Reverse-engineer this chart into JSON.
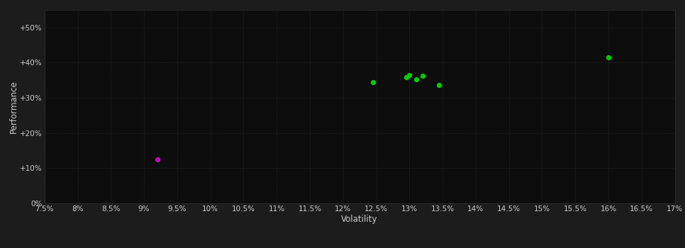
{
  "background_color": "#1c1c1c",
  "plot_bg_color": "#0d0d0d",
  "grid_color": "#2e2e2e",
  "text_color": "#cccccc",
  "xlabel": "Volatility",
  "ylabel": "Performance",
  "xlim": [
    0.075,
    0.17
  ],
  "ylim": [
    0.0,
    0.55
  ],
  "xticks": [
    0.075,
    0.08,
    0.085,
    0.09,
    0.095,
    0.1,
    0.105,
    0.11,
    0.115,
    0.12,
    0.125,
    0.13,
    0.135,
    0.14,
    0.145,
    0.15,
    0.155,
    0.16,
    0.165,
    0.17
  ],
  "yticks": [
    0.0,
    0.1,
    0.2,
    0.3,
    0.4,
    0.5
  ],
  "ytick_labels": [
    "0%",
    "+10%",
    "+20%",
    "+30%",
    "+40%",
    "+50%"
  ],
  "xtick_labels": [
    "7.5%",
    "8%",
    "8.5%",
    "9%",
    "9.5%",
    "10%",
    "10.5%",
    "11%",
    "11.5%",
    "12%",
    "12.5%",
    "13%",
    "13.5%",
    "14%",
    "14.5%",
    "15%",
    "15.5%",
    "16%",
    "16.5%",
    "17%"
  ],
  "green_points": [
    [
      0.1245,
      0.345
    ],
    [
      0.1295,
      0.358
    ],
    [
      0.13,
      0.365
    ],
    [
      0.131,
      0.352
    ],
    [
      0.132,
      0.362
    ],
    [
      0.1345,
      0.337
    ],
    [
      0.16,
      0.415
    ]
  ],
  "magenta_points": [
    [
      0.092,
      0.125
    ]
  ],
  "green_color": "#00cc00",
  "magenta_color": "#cc00cc",
  "point_size": 28,
  "tick_fontsize": 7.5,
  "label_fontsize": 8.5
}
